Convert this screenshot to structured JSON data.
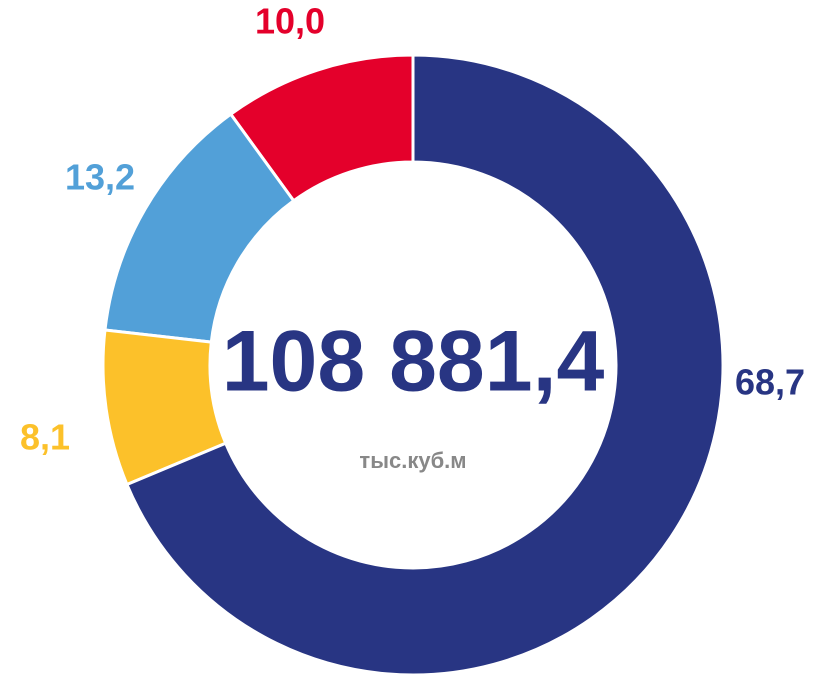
{
  "chart_data": {
    "type": "donut",
    "center_title": "108 881,4",
    "center_subtitle": "тыс.куб.м",
    "values": [
      68.7,
      8.1,
      13.2,
      10.0
    ],
    "value_labels": [
      "68,7",
      "8,1",
      "13,2",
      "10,0"
    ],
    "colors": [
      "#283583",
      "#fcc12a",
      "#52a0d8",
      "#e4002b"
    ]
  }
}
